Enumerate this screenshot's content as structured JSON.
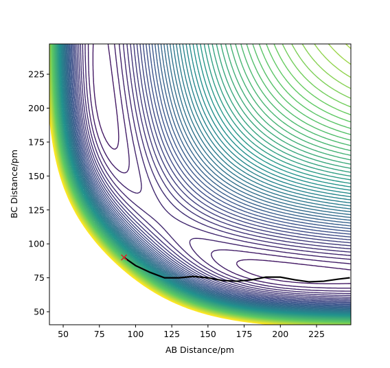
{
  "chart_data": {
    "type": "contour",
    "x_label": "AB Distance/pm",
    "y_label": "BC Distance/pm",
    "xlim": [
      40.5,
      248.7
    ],
    "ylim": [
      40.4,
      247.3
    ],
    "xticks": [
      50,
      75,
      100,
      125,
      150,
      175,
      200,
      225
    ],
    "yticks": [
      50,
      75,
      100,
      125,
      150,
      175,
      200,
      225
    ],
    "levels": [
      -40,
      -32,
      -24,
      -16,
      -8,
      0,
      8,
      16,
      24,
      32,
      40,
      48,
      56,
      64,
      72,
      80,
      88,
      96,
      104,
      112,
      120,
      128,
      136,
      144,
      152,
      160,
      168,
      176,
      184,
      192,
      200,
      208,
      216,
      224,
      232,
      240,
      248,
      256,
      264,
      272,
      280,
      288,
      296,
      304,
      312,
      320,
      328,
      336,
      344,
      352,
      360,
      368,
      376,
      384,
      392,
      400,
      408,
      416,
      424,
      432
    ],
    "colormap_stops": [
      "#440154",
      "#3b528b",
      "#21918c",
      "#5ec962",
      "#fde725"
    ],
    "trajectory": {
      "color": "#000000",
      "x": [
        92,
        100,
        110,
        120,
        130,
        140,
        150,
        160,
        170,
        180,
        190,
        200,
        210,
        220,
        230,
        240,
        248
      ],
      "y": [
        90,
        84,
        79,
        75,
        75,
        76,
        75,
        73,
        72.5,
        73.5,
        75.5,
        75.5,
        73.5,
        72,
        72.5,
        74,
        75
      ]
    },
    "start": {
      "x": 92,
      "y": 90,
      "color": "#d62728"
    }
  }
}
